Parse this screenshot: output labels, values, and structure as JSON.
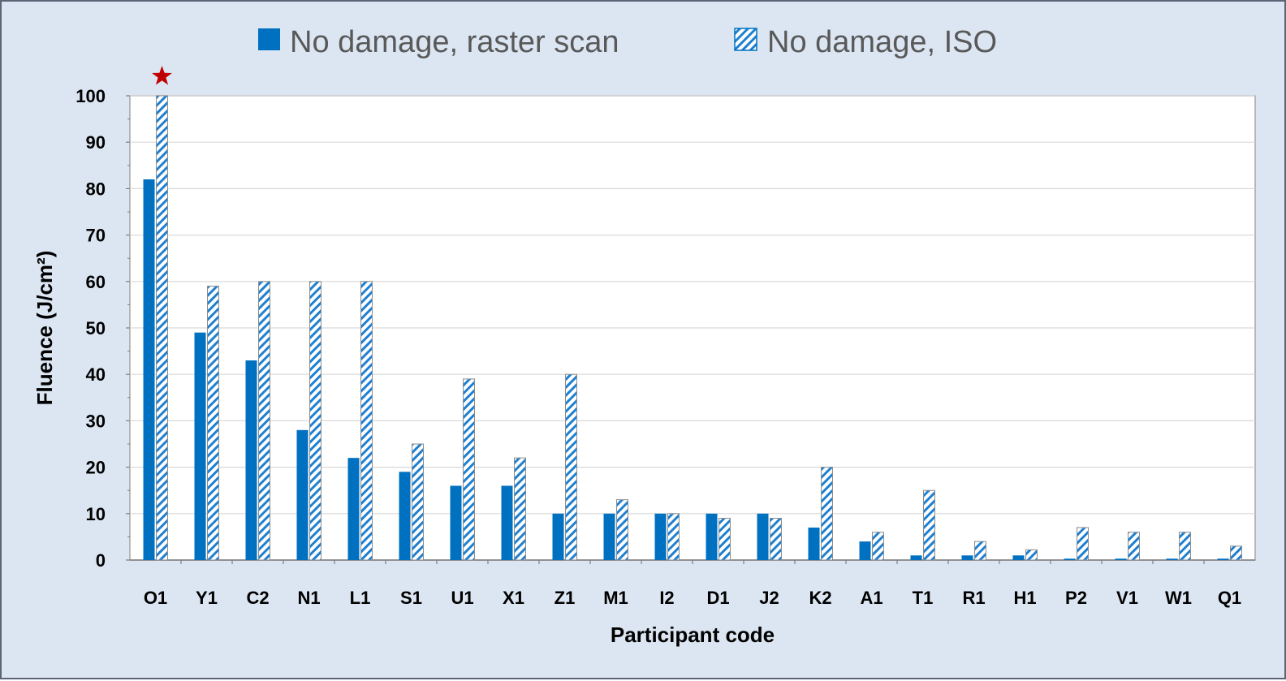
{
  "chart_data": {
    "type": "bar",
    "title": "",
    "xlabel": "Participant code",
    "ylabel": "Fluence (J/cm²)",
    "ylim": [
      0,
      100
    ],
    "yticks": [
      0,
      10,
      20,
      30,
      40,
      50,
      60,
      70,
      80,
      90,
      100
    ],
    "grid": true,
    "legend_position": "top",
    "categories": [
      "O1",
      "Y1",
      "C2",
      "N1",
      "L1",
      "S1",
      "U1",
      "X1",
      "Z1",
      "M1",
      "I2",
      "D1",
      "J2",
      "K2",
      "A1",
      "T1",
      "R1",
      "H1",
      "P2",
      "V1",
      "W1",
      "Q1"
    ],
    "series": [
      {
        "name": "No damage, raster scan",
        "style": "solid",
        "color": "#0070c0",
        "values": [
          82,
          49,
          43,
          28,
          22,
          19,
          16,
          16,
          10,
          10,
          10,
          10,
          10,
          7,
          4,
          1,
          1,
          1,
          0.3,
          0.3,
          0.3,
          0.3
        ]
      },
      {
        "name": "No damage, ISO",
        "style": "hatched",
        "color": "#0070c0",
        "values": [
          100,
          59,
          60,
          60,
          60,
          25,
          39,
          22,
          40,
          13,
          10,
          9,
          9,
          20,
          6,
          15,
          4,
          2.2,
          7,
          6,
          6,
          3
        ]
      }
    ],
    "annotations": [
      {
        "category": "O1",
        "series": "No damage, ISO",
        "marker": "star",
        "color": "#c00000"
      }
    ]
  }
}
